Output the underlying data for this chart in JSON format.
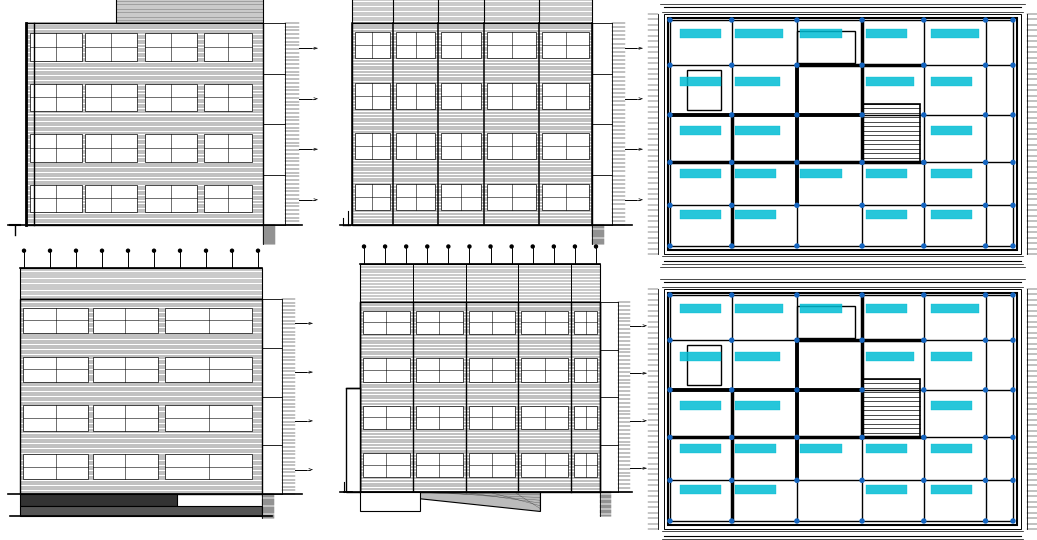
{
  "bg_color": "#ffffff",
  "line_color": "#000000",
  "cyan_color": "#00bcd4",
  "blue_dot": "#1565C0",
  "figure_width": 10.37,
  "figure_height": 5.4,
  "dpi": 100
}
